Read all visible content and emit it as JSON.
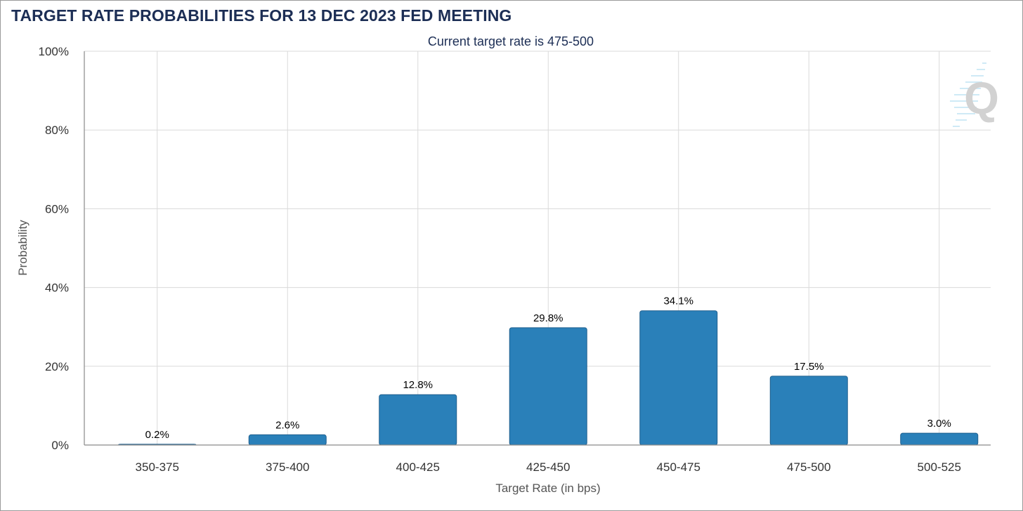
{
  "chart_data": {
    "type": "bar",
    "title": "TARGET RATE PROBABILITIES FOR 13 DEC 2023 FED MEETING",
    "subtitle": "Current target rate is 475-500",
    "xlabel": "Target Rate (in bps)",
    "ylabel": "Probability",
    "categories": [
      "350-375",
      "375-400",
      "400-425",
      "425-450",
      "450-475",
      "475-500",
      "500-525"
    ],
    "values": [
      0.2,
      2.6,
      12.8,
      29.8,
      34.1,
      17.5,
      3.0
    ],
    "data_labels": [
      "0.2%",
      "2.6%",
      "12.8%",
      "29.8%",
      "34.1%",
      "17.5%",
      "3.0%"
    ],
    "ylim": [
      0,
      100
    ],
    "yticks": [
      0,
      20,
      40,
      60,
      80,
      100
    ],
    "ytick_labels": [
      "0%",
      "20%",
      "40%",
      "60%",
      "80%",
      "100%"
    ],
    "grid": true,
    "bar_color": "#2a80b9"
  },
  "watermark": {
    "icon": "q-logo-icon",
    "text": "Q"
  }
}
